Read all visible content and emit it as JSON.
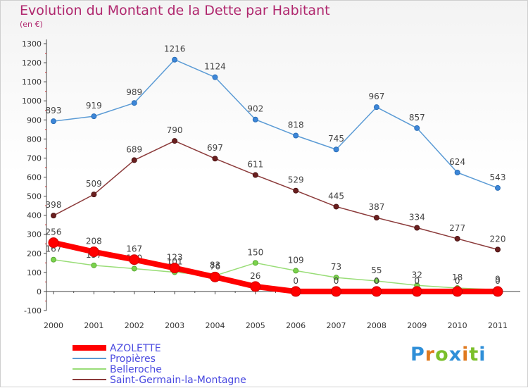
{
  "header": {
    "title": "Evolution du Montant de la Dette par Habitant",
    "unit": "(en €)"
  },
  "logo": {
    "text": "Proxiti"
  },
  "chart_data": {
    "type": "line",
    "title": "Evolution du Montant de la Dette par Habitant",
    "subtitle": "(en €)",
    "xlabel": "",
    "ylabel": "",
    "x": [
      "2000",
      "2001",
      "2002",
      "2003",
      "2004",
      "2005",
      "2006",
      "2007",
      "2008",
      "2009",
      "2010",
      "2011"
    ],
    "ylim": [
      -100,
      1300
    ],
    "yticks": [
      -100,
      0,
      100,
      200,
      300,
      400,
      500,
      600,
      700,
      800,
      900,
      1000,
      1100,
      1200,
      1300
    ],
    "grid": false,
    "legend_position": "bottom-left",
    "series": [
      {
        "name": "AZOLETTE",
        "color": "#ff0000",
        "values": [
          256,
          208,
          167,
          123,
          76,
          26,
          0,
          0,
          0,
          0,
          0,
          0
        ],
        "labels": [
          "256",
          "208",
          "167",
          "123",
          "76",
          "26",
          "0",
          "0",
          "0",
          "0",
          "0",
          "0"
        ]
      },
      {
        "name": "Propières",
        "color": "#5b9bd5",
        "values": [
          893,
          919,
          989,
          1216,
          1124,
          902,
          818,
          745,
          967,
          857,
          624,
          543
        ],
        "labels": [
          "893",
          "919",
          "989",
          "1216",
          "1124",
          "902",
          "818",
          "745",
          "967",
          "857",
          "624",
          "543"
        ]
      },
      {
        "name": "Belleroche",
        "color": "#99dd77",
        "values": [
          167,
          137,
          120,
          101,
          83,
          150,
          109,
          73,
          55,
          32,
          18,
          9
        ],
        "labels": [
          "167",
          "137",
          "120",
          "101",
          "83",
          "150",
          "109",
          "73",
          "55",
          "32",
          "18",
          "9"
        ]
      },
      {
        "name": "Saint-Germain-la-Montagne",
        "color": "#8b3a3a",
        "values": [
          398,
          509,
          689,
          790,
          697,
          611,
          529,
          445,
          387,
          334,
          277,
          220
        ],
        "labels": [
          "398",
          "509",
          "689",
          "790",
          "697",
          "611",
          "529",
          "445",
          "387",
          "334",
          "277",
          "220"
        ]
      }
    ]
  }
}
